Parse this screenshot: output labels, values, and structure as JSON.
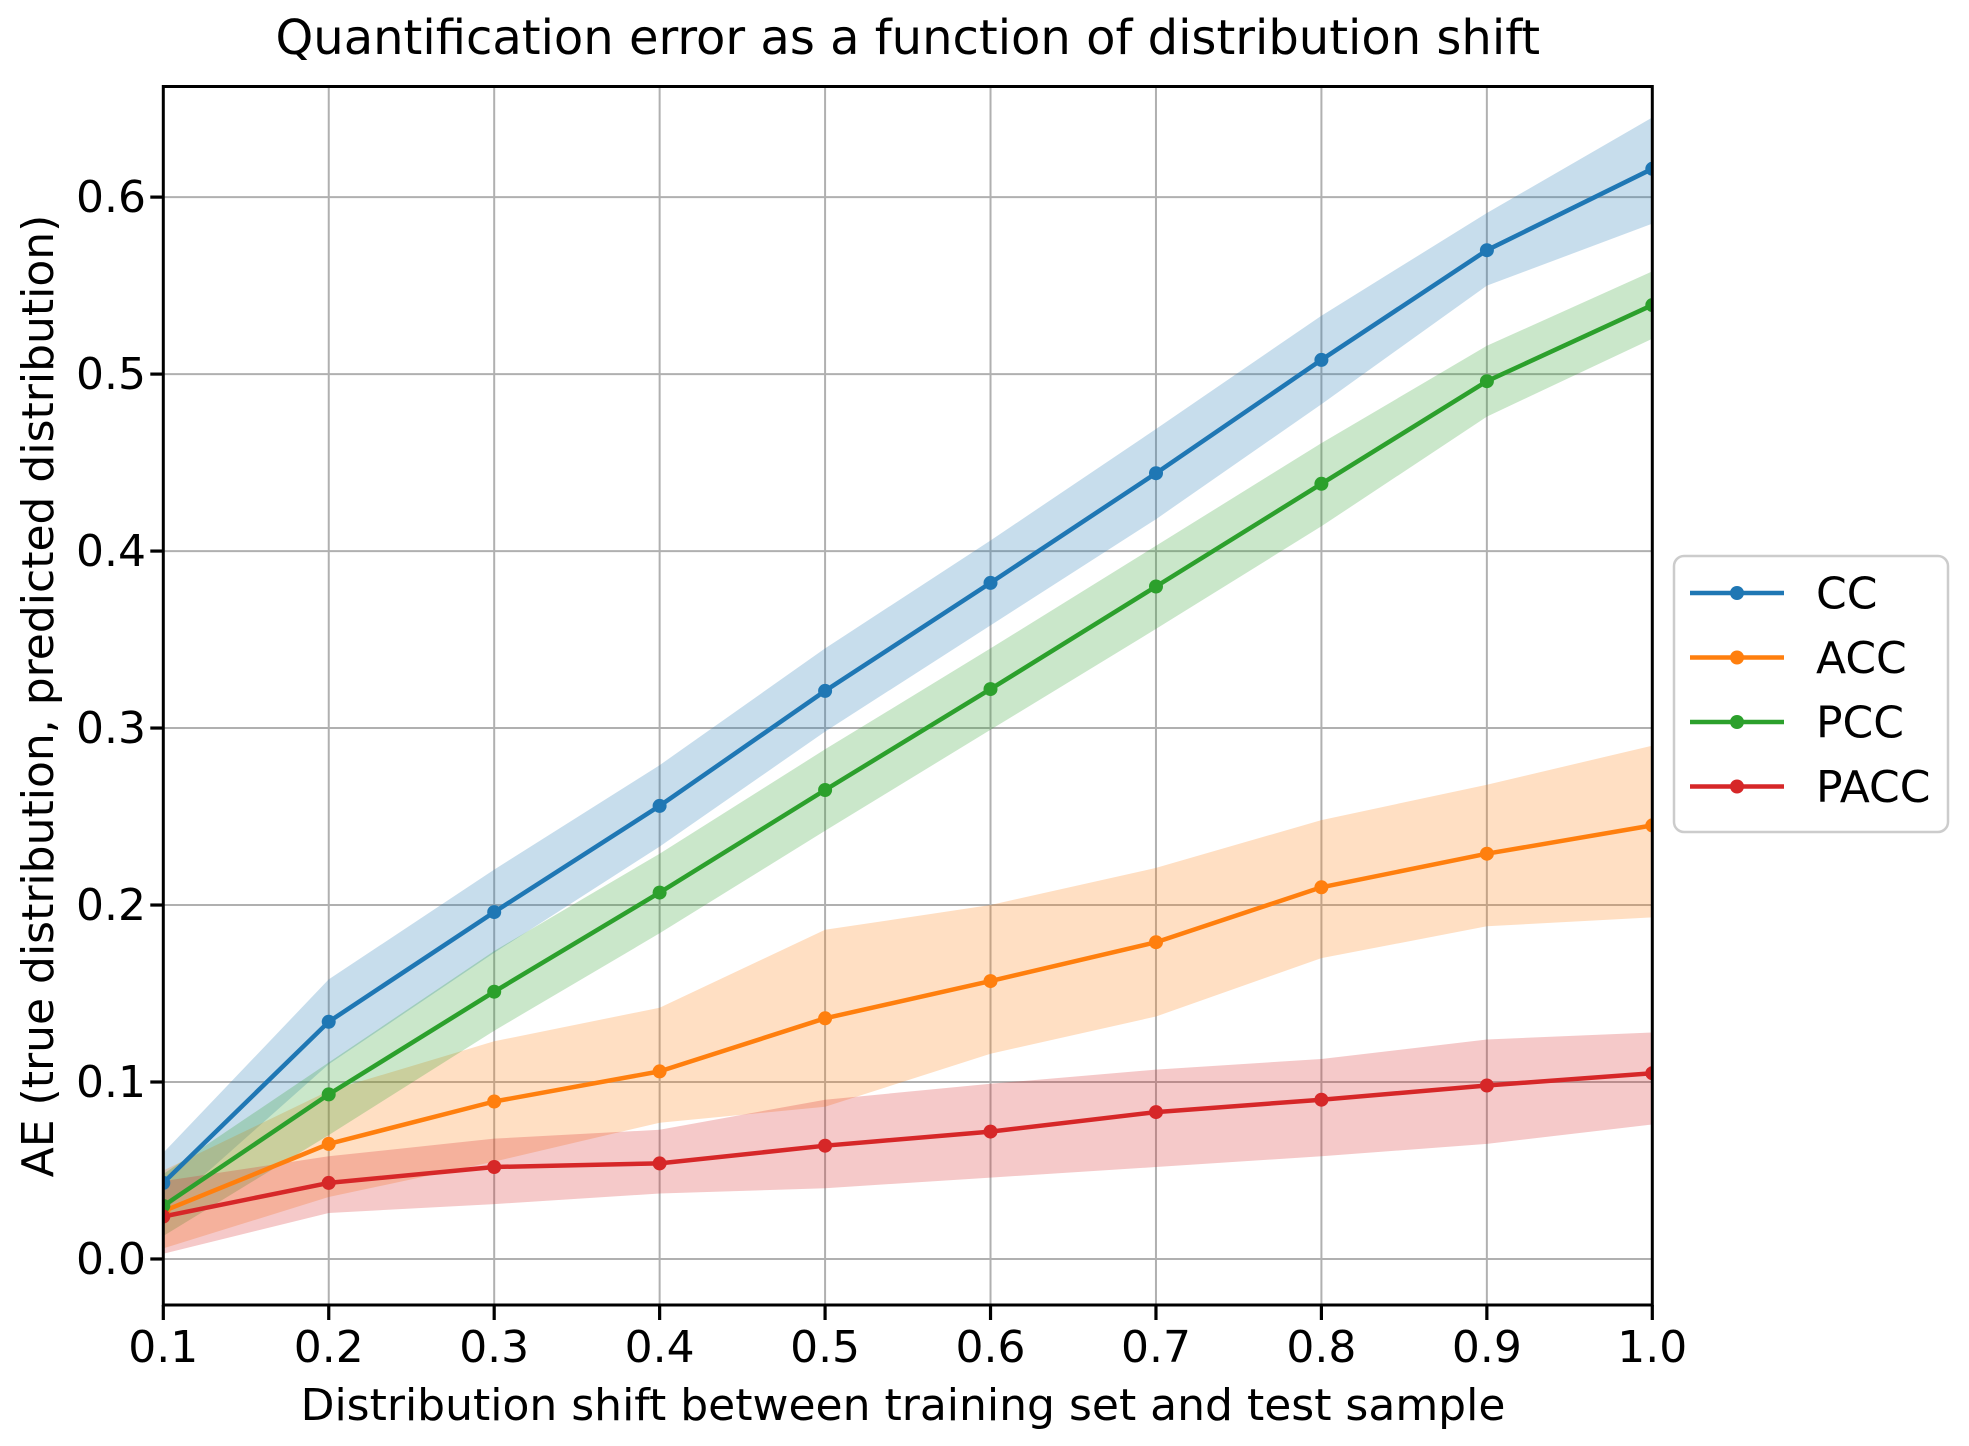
{
  "chart_data": {
    "type": "line",
    "title": "Quantification error as a function of distribution shift",
    "xlabel": "Distribution shift between training set and test sample",
    "ylabel": "AE (true distribution, predicted distribution)",
    "x": [
      0.1,
      0.2,
      0.3,
      0.4,
      0.5,
      0.6,
      0.7,
      0.8,
      0.9,
      1.0
    ],
    "xlim": [
      0.1,
      1.0
    ],
    "ylim": [
      -0.026,
      0.6625
    ],
    "xticks": [
      "0.1",
      "0.2",
      "0.3",
      "0.4",
      "0.5",
      "0.6",
      "0.7",
      "0.8",
      "0.9",
      "1.0"
    ],
    "yticks": [
      "0.0",
      "0.1",
      "0.2",
      "0.3",
      "0.4",
      "0.5",
      "0.6"
    ],
    "grid": true,
    "band_alpha": 0.25,
    "marker": "circle",
    "legend_position": "outside-center-right",
    "series": [
      {
        "name": "CC",
        "color": "#1f77b4",
        "values": [
          0.043,
          0.134,
          0.196,
          0.256,
          0.321,
          0.382,
          0.444,
          0.508,
          0.57,
          0.616
        ],
        "band_low": [
          0.027,
          0.11,
          0.173,
          0.233,
          0.298,
          0.358,
          0.418,
          0.483,
          0.55,
          0.585
        ],
        "band_high": [
          0.06,
          0.158,
          0.22,
          0.279,
          0.345,
          0.406,
          0.469,
          0.533,
          0.591,
          0.645
        ]
      },
      {
        "name": "ACC",
        "color": "#ff7f0e",
        "values": [
          0.027,
          0.065,
          0.089,
          0.106,
          0.136,
          0.157,
          0.179,
          0.21,
          0.229,
          0.245
        ],
        "band_low": [
          0.006,
          0.035,
          0.055,
          0.077,
          0.086,
          0.116,
          0.137,
          0.17,
          0.188,
          0.193
        ],
        "band_high": [
          0.05,
          0.095,
          0.123,
          0.142,
          0.186,
          0.2,
          0.221,
          0.248,
          0.268,
          0.29
        ]
      },
      {
        "name": "PCC",
        "color": "#2ca02c",
        "values": [
          0.03,
          0.093,
          0.151,
          0.207,
          0.265,
          0.322,
          0.38,
          0.438,
          0.496,
          0.539
        ],
        "band_low": [
          0.013,
          0.07,
          0.129,
          0.184,
          0.242,
          0.299,
          0.356,
          0.414,
          0.476,
          0.52
        ],
        "band_high": [
          0.048,
          0.111,
          0.174,
          0.229,
          0.288,
          0.345,
          0.403,
          0.461,
          0.516,
          0.558
        ]
      },
      {
        "name": "PACC",
        "color": "#d62728",
        "values": [
          0.024,
          0.043,
          0.052,
          0.054,
          0.064,
          0.072,
          0.083,
          0.09,
          0.098,
          0.105
        ],
        "band_low": [
          0.003,
          0.026,
          0.031,
          0.037,
          0.04,
          0.046,
          0.052,
          0.058,
          0.065,
          0.076
        ],
        "band_high": [
          0.044,
          0.058,
          0.068,
          0.073,
          0.09,
          0.099,
          0.107,
          0.113,
          0.124,
          0.128
        ]
      }
    ]
  }
}
